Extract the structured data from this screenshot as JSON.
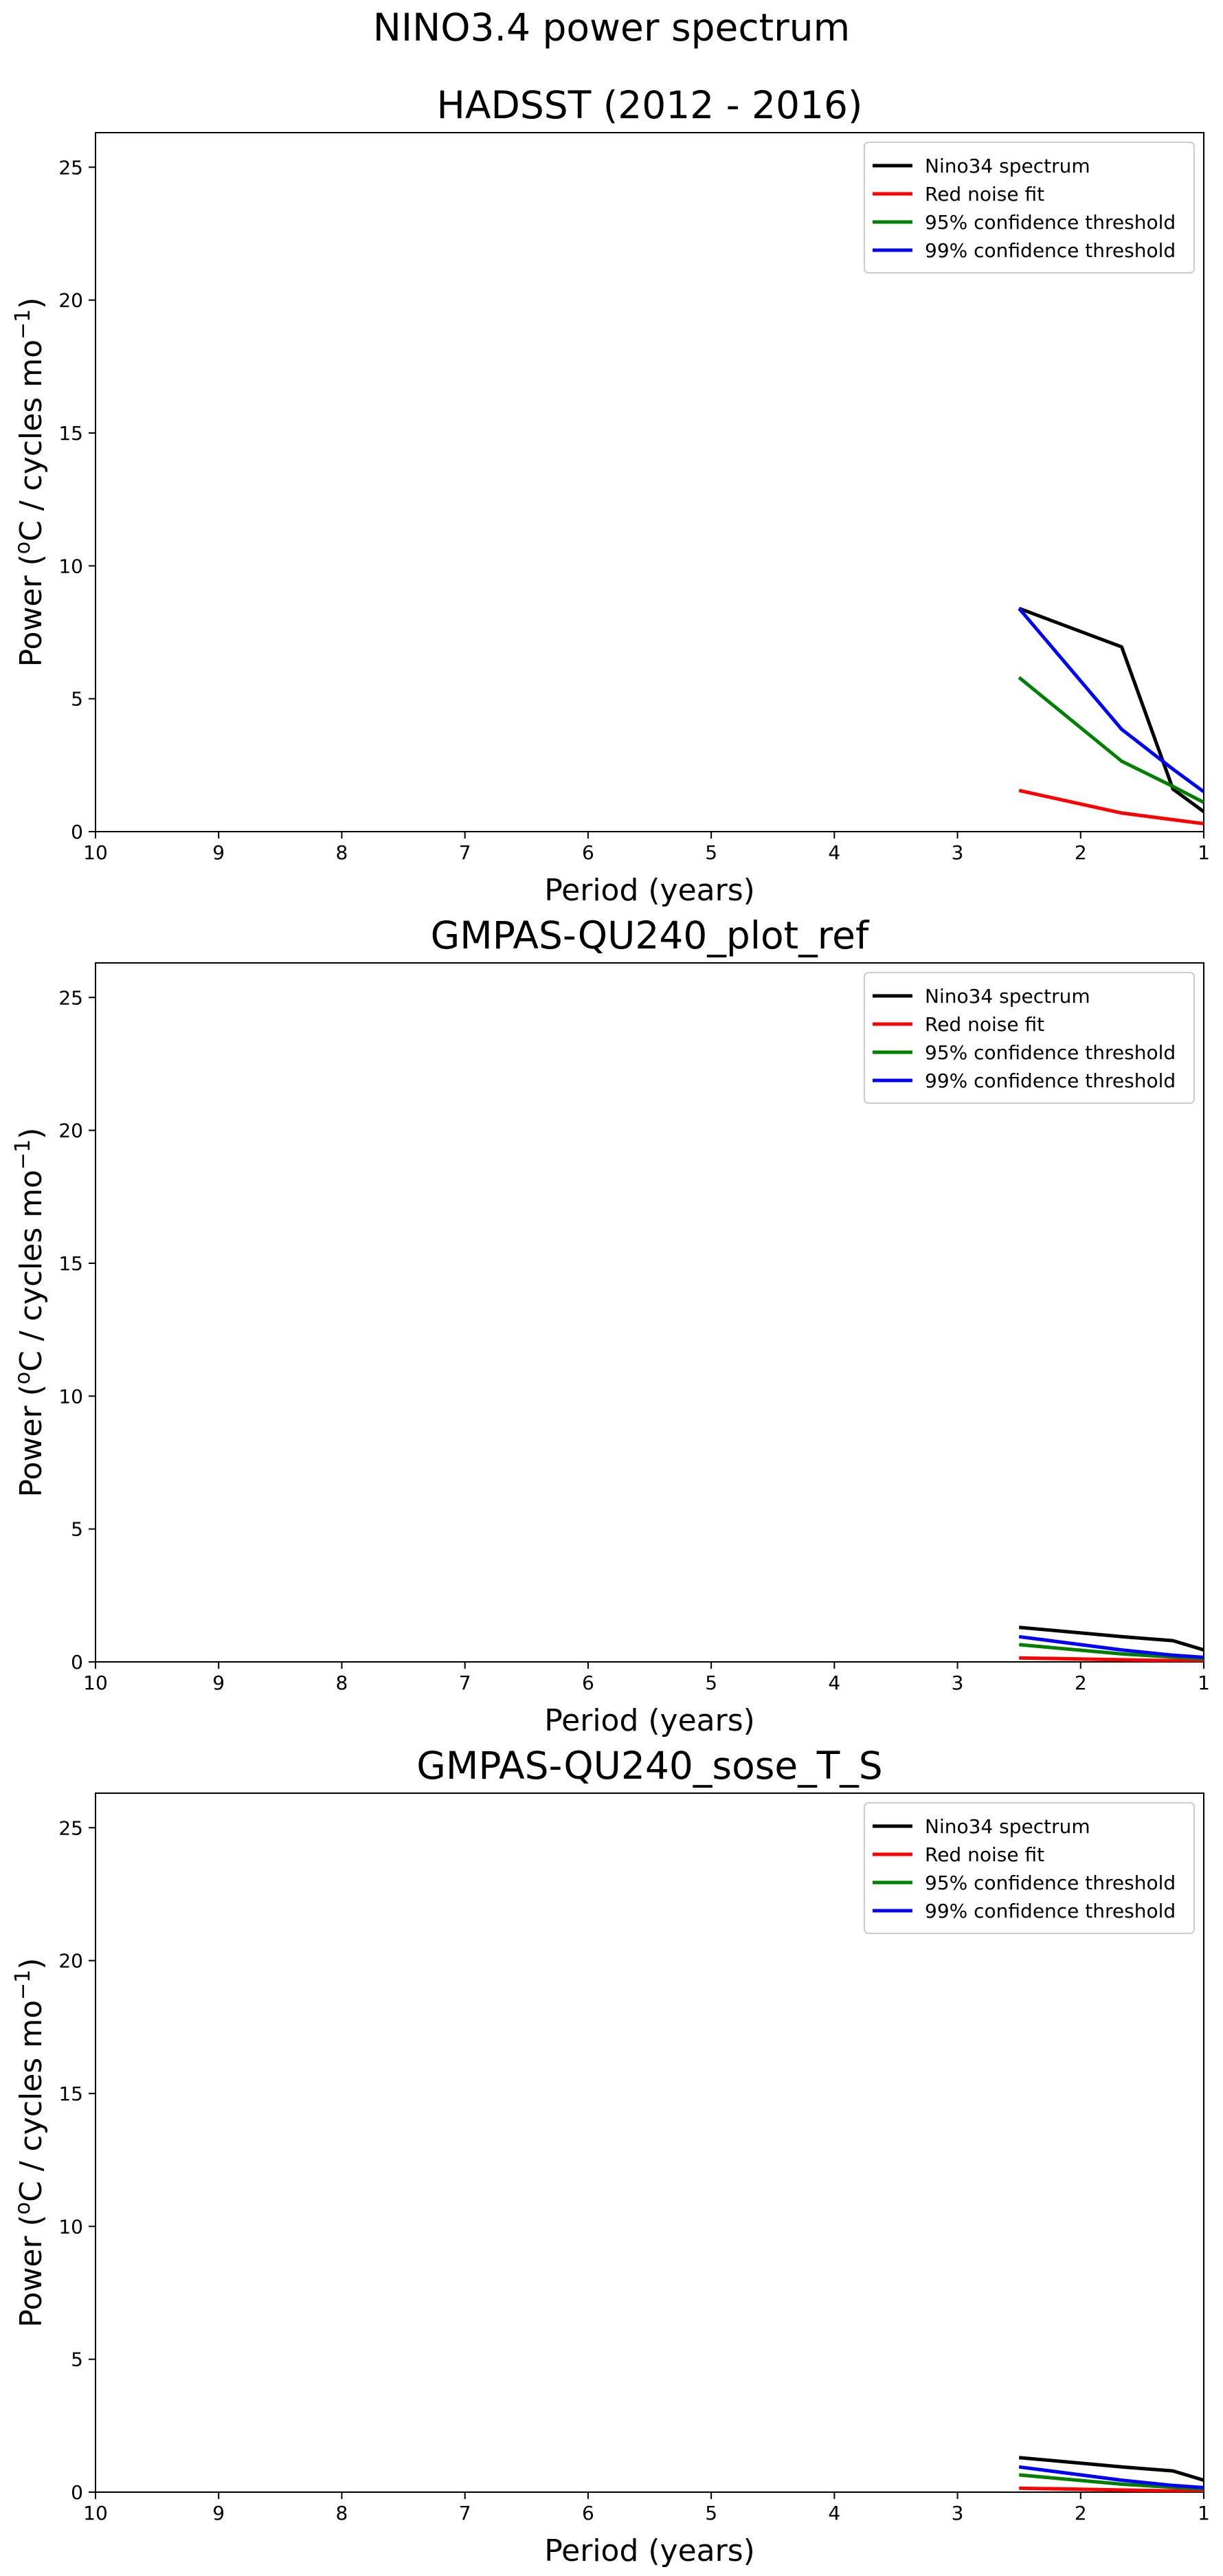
{
  "figure": {
    "suptitle": "NINO3.4 power spectrum"
  },
  "colors": {
    "Nino34 spectrum": "#000000",
    "Red noise fit": "#ff0000",
    "95% confidence threshold": "#008000",
    "99% confidence threshold": "#0000ff"
  },
  "chart_data": [
    {
      "type": "line",
      "title": "HADSST (2012 - 2016)",
      "xlabel": "Period (years)",
      "ylabel_main": "Power (",
      "ylabel_sup_o": "o",
      "ylabel_mid": "C / cycles mo",
      "ylabel_sup_exp": "−1",
      "ylabel_end": ")",
      "xlim": [
        10,
        1
      ],
      "ylim": [
        0,
        26.3
      ],
      "xticks": [
        10,
        9,
        8,
        7,
        6,
        5,
        4,
        3,
        2,
        1
      ],
      "yticks": [
        0,
        5,
        10,
        15,
        20,
        25
      ],
      "legend_position": "top-right",
      "x": [
        2.5,
        1.667,
        1.25,
        1.0
      ],
      "series": [
        {
          "name": "Nino34 spectrum",
          "values": [
            8.4,
            6.95,
            1.6,
            0.75
          ]
        },
        {
          "name": "Red noise fit",
          "values": [
            1.55,
            0.7,
            0.45,
            0.3
          ]
        },
        {
          "name": "95% confidence threshold",
          "values": [
            5.8,
            2.65,
            1.7,
            1.1
          ]
        },
        {
          "name": "99% confidence threshold",
          "values": [
            8.4,
            3.85,
            2.35,
            1.5
          ]
        }
      ]
    },
    {
      "type": "line",
      "title": "GMPAS-QU240_plot_ref",
      "xlabel": "Period (years)",
      "ylabel_main": "Power (",
      "ylabel_sup_o": "o",
      "ylabel_mid": "C / cycles mo",
      "ylabel_sup_exp": "−1",
      "ylabel_end": ")",
      "xlim": [
        10,
        1
      ],
      "ylim": [
        0,
        26.3
      ],
      "xticks": [
        10,
        9,
        8,
        7,
        6,
        5,
        4,
        3,
        2,
        1
      ],
      "yticks": [
        0,
        5,
        10,
        15,
        20,
        25
      ],
      "legend_position": "top-right",
      "x": [
        2.5,
        1.667,
        1.25,
        1.0
      ],
      "series": [
        {
          "name": "Nino34 spectrum",
          "values": [
            1.3,
            0.95,
            0.8,
            0.45
          ]
        },
        {
          "name": "Red noise fit",
          "values": [
            0.15,
            0.08,
            0.05,
            0.04
          ]
        },
        {
          "name": "95% confidence threshold",
          "values": [
            0.65,
            0.3,
            0.18,
            0.12
          ]
        },
        {
          "name": "99% confidence threshold",
          "values": [
            0.95,
            0.45,
            0.25,
            0.17
          ]
        }
      ]
    },
    {
      "type": "line",
      "title": "GMPAS-QU240_sose_T_S",
      "xlabel": "Period (years)",
      "ylabel_main": "Power (",
      "ylabel_sup_o": "o",
      "ylabel_mid": "C / cycles mo",
      "ylabel_sup_exp": "−1",
      "ylabel_end": ")",
      "xlim": [
        10,
        1
      ],
      "ylim": [
        0,
        26.3
      ],
      "xticks": [
        10,
        9,
        8,
        7,
        6,
        5,
        4,
        3,
        2,
        1
      ],
      "yticks": [
        0,
        5,
        10,
        15,
        20,
        25
      ],
      "legend_position": "top-right",
      "x": [
        2.5,
        1.667,
        1.25,
        1.0
      ],
      "series": [
        {
          "name": "Nino34 spectrum",
          "values": [
            1.3,
            0.95,
            0.8,
            0.45
          ]
        },
        {
          "name": "Red noise fit",
          "values": [
            0.15,
            0.08,
            0.05,
            0.04
          ]
        },
        {
          "name": "95% confidence threshold",
          "values": [
            0.65,
            0.3,
            0.18,
            0.12
          ]
        },
        {
          "name": "99% confidence threshold",
          "values": [
            0.95,
            0.45,
            0.25,
            0.17
          ]
        }
      ]
    }
  ]
}
